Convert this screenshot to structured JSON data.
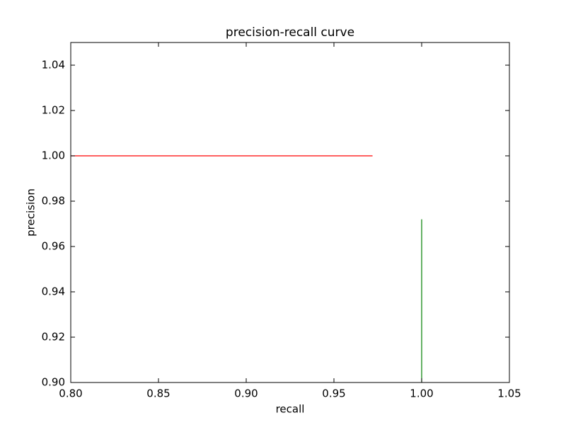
{
  "chart_data": {
    "type": "line",
    "title": "precision-recall curve",
    "x_label": "recall",
    "y_label": "precision",
    "series": [
      {
        "color": "#ff0000",
        "x": [
          0.8,
          0.972
        ],
        "values": [
          1.0,
          1.0
        ]
      },
      {
        "color": "#008000",
        "x": [
          1.0,
          1.0
        ],
        "values": [
          0.9,
          0.972
        ]
      }
    ],
    "xlim": [
      0.8,
      1.05
    ],
    "xticks": [
      {
        "value": 0.8,
        "label": "0.80"
      },
      {
        "value": 0.85,
        "label": "0.85"
      },
      {
        "value": 0.9,
        "label": "0.90"
      },
      {
        "value": 0.95,
        "label": "0.95"
      },
      {
        "value": 1.0,
        "label": "1.00"
      },
      {
        "value": 1.05,
        "label": "1.05"
      }
    ],
    "ylim": [
      0.9,
      1.05
    ],
    "yticks": [
      {
        "value": 0.9,
        "label": "0.90"
      },
      {
        "value": 0.92,
        "label": "0.92"
      },
      {
        "value": 0.94,
        "label": "0.94"
      },
      {
        "value": 0.96,
        "label": "0.96"
      },
      {
        "value": 0.98,
        "label": "0.98"
      },
      {
        "value": 1.0,
        "label": "1.00"
      },
      {
        "value": 1.02,
        "label": "1.02"
      },
      {
        "value": 1.04,
        "label": "1.04"
      }
    ],
    "grid": false
  }
}
